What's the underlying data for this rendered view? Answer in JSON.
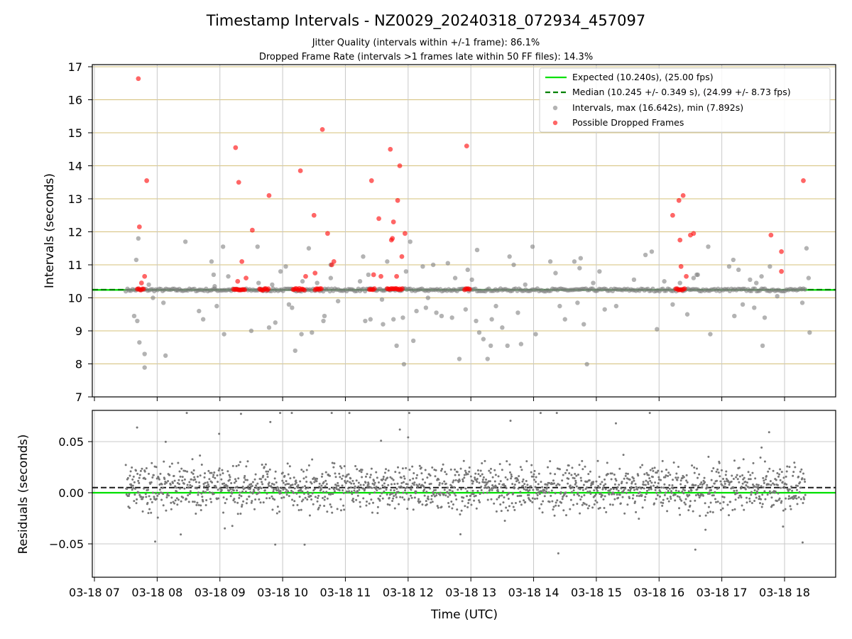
{
  "title": "Timestamp Intervals - NZ0029_20240318_072934_457097",
  "subtitle_1": "Jitter Quality (intervals within +/-1 frame): 86.1%",
  "subtitle_2": "Dropped Frame Rate (intervals >1 frames late within 50 FF files): 14.3%",
  "colors": {
    "expected": "#00e000",
    "median": "#008000",
    "intervals": "#808080",
    "dropped": "#ff0000",
    "hgrid_top": "#d4c07a",
    "grid": "#c8c8c8"
  },
  "chart_data": [
    {
      "type": "scatter",
      "panel": "top",
      "ylabel": "Intervals (seconds)",
      "ylim": [
        7,
        17
      ],
      "yticks": [
        "7",
        "8",
        "9",
        "10",
        "11",
        "12",
        "13",
        "14",
        "15",
        "16",
        "17"
      ],
      "xlim": [
        "07:00",
        "18:52"
      ],
      "grid": true,
      "legend_placement": "top-right",
      "legend": [
        "Expected (10.240s), (25.00 fps)",
        "Median (10.245 +/- 0.349 s), (24.99 +/- 8.73 fps)",
        "Intervals, max (16.642s), min (7.892s)",
        "Possible Dropped Frames"
      ],
      "expected": 10.24,
      "median": 10.245,
      "cluster_time_range": [
        "07:30",
        "18:20"
      ],
      "intervals_outliers": [
        [
          "07:42",
          11.8
        ],
        [
          "07:40",
          11.15
        ],
        [
          "07:41",
          9.3
        ],
        [
          "07:43",
          8.65
        ],
        [
          "07:48",
          8.3
        ],
        [
          "07:52",
          10.4
        ],
        [
          "07:56",
          10.0
        ],
        [
          "07:48",
          7.89
        ],
        [
          "08:06",
          9.85
        ],
        [
          "08:08",
          8.25
        ],
        [
          "08:44",
          9.35
        ],
        [
          "08:52",
          11.1
        ],
        [
          "08:54",
          10.7
        ],
        [
          "08:57",
          9.75
        ],
        [
          "09:03",
          11.55
        ],
        [
          "09:04",
          8.9
        ],
        [
          "09:37",
          10.45
        ],
        [
          "09:47",
          9.1
        ],
        [
          "09:53",
          9.25
        ],
        [
          "09:58",
          10.8
        ],
        [
          "10:03",
          10.95
        ],
        [
          "10:06",
          9.8
        ],
        [
          "10:09",
          9.7
        ],
        [
          "10:12",
          8.4
        ],
        [
          "10:19",
          10.5
        ],
        [
          "10:25",
          11.5
        ],
        [
          "10:28",
          8.95
        ],
        [
          "10:33",
          10.45
        ],
        [
          "10:40",
          9.45
        ],
        [
          "10:46",
          10.6
        ],
        [
          "10:53",
          9.9
        ],
        [
          "11:17",
          11.25
        ],
        [
          "11:19",
          9.3
        ],
        [
          "11:22",
          10.7
        ],
        [
          "11:24",
          9.35
        ],
        [
          "11:36",
          9.2
        ],
        [
          "11:40",
          11.1
        ],
        [
          "11:46",
          9.35
        ],
        [
          "11:49",
          8.55
        ],
        [
          "11:55",
          9.4
        ],
        [
          "11:58",
          10.8
        ],
        [
          "12:02",
          11.7
        ],
        [
          "12:05",
          8.7
        ],
        [
          "12:08",
          9.6
        ],
        [
          "12:14",
          10.95
        ],
        [
          "12:19",
          10.0
        ],
        [
          "12:24",
          11.0
        ],
        [
          "12:27",
          9.55
        ],
        [
          "12:32",
          9.45
        ],
        [
          "12:38",
          11.05
        ],
        [
          "12:42",
          9.4
        ],
        [
          "12:49",
          8.15
        ],
        [
          "12:55",
          9.65
        ],
        [
          "12:57",
          10.85
        ],
        [
          "13:01",
          10.55
        ],
        [
          "13:05",
          9.3
        ],
        [
          "13:08",
          8.95
        ],
        [
          "13:12",
          8.75
        ],
        [
          "13:16",
          8.15
        ],
        [
          "13:19",
          8.55
        ],
        [
          "13:24",
          9.75
        ],
        [
          "13:30",
          9.1
        ],
        [
          "13:35",
          8.55
        ],
        [
          "13:37",
          11.25
        ],
        [
          "13:41",
          11.0
        ],
        [
          "13:45",
          9.55
        ],
        [
          "13:52",
          10.4
        ],
        [
          "13:59",
          11.55
        ],
        [
          "14:02",
          8.9
        ],
        [
          "14:21",
          10.75
        ],
        [
          "14:25",
          9.75
        ],
        [
          "14:30",
          9.35
        ],
        [
          "14:39",
          11.1
        ],
        [
          "14:42",
          9.85
        ],
        [
          "14:45",
          11.2
        ],
        [
          "14:48",
          9.2
        ],
        [
          "14:51",
          7.99
        ],
        [
          "14:57",
          10.45
        ],
        [
          "15:03",
          10.8
        ],
        [
          "15:08",
          9.65
        ],
        [
          "15:36",
          10.55
        ],
        [
          "15:53",
          11.4
        ],
        [
          "15:58",
          9.05
        ],
        [
          "16:05",
          10.5
        ],
        [
          "16:13",
          9.8
        ],
        [
          "16:20",
          10.45
        ],
        [
          "16:27",
          9.5
        ],
        [
          "16:33",
          10.6
        ],
        [
          "16:37",
          10.7
        ],
        [
          "16:47",
          11.55
        ],
        [
          "16:49",
          8.9
        ],
        [
          "17:07",
          10.95
        ],
        [
          "17:12",
          9.45
        ],
        [
          "17:16",
          10.85
        ],
        [
          "17:20",
          9.8
        ],
        [
          "17:27",
          10.55
        ],
        [
          "17:31",
          9.7
        ],
        [
          "17:33",
          10.45
        ],
        [
          "17:38",
          10.65
        ],
        [
          "17:41",
          9.4
        ],
        [
          "17:46",
          10.95
        ],
        [
          "17:53",
          10.05
        ],
        [
          "18:17",
          9.85
        ],
        [
          "18:21",
          11.5
        ],
        [
          "18:23",
          10.6
        ],
        [
          "18:24",
          8.95
        ],
        [
          "18:27",
          10.25
        ],
        [
          "18:30",
          9.6
        ],
        [
          "18:34",
          10.65
        ],
        [
          "18:38",
          11.55
        ],
        [
          "18:40",
          10.4
        ],
        [
          "18:44",
          8.9
        ],
        [
          "18:47",
          9.3
        ],
        [
          "18:48",
          11.0
        ],
        [
          "18:52",
          10.5
        ],
        [
          "18:55",
          9.95
        ],
        [
          "18:58",
          7.99
        ],
        [
          "19:01",
          9.7
        ],
        [
          "19:05",
          10.6
        ],
        [
          "19:08",
          11.45
        ],
        [
          "19:10",
          9.35
        ],
        [
          "19:14",
          8.6
        ],
        [
          "19:18",
          11.1
        ],
        [
          "19:22",
          10.9
        ],
        [
          "19:27",
          9.75
        ],
        [
          "19:31",
          11.3
        ],
        [
          "19:38",
          10.7
        ],
        [
          "19:43",
          11.15
        ],
        [
          "19:47",
          8.55
        ],
        [
          "19:54",
          9.45
        ],
        [
          "20:01",
          11.7
        ],
        [
          "20:05",
          10.35
        ],
        [
          "20:10",
          9.0
        ]
      ],
      "dropped_frames": [
        [
          "07:42",
          16.64
        ],
        [
          "07:43",
          12.15
        ],
        [
          "07:45",
          10.45
        ],
        [
          "07:48",
          10.65
        ],
        [
          "07:50",
          13.55
        ],
        [
          "09:15",
          14.55
        ],
        [
          "09:17",
          10.5
        ],
        [
          "09:18",
          13.5
        ],
        [
          "09:21",
          11.1
        ],
        [
          "09:25",
          10.6
        ],
        [
          "09:31",
          12.05
        ],
        [
          "09:47",
          13.1
        ],
        [
          "10:17",
          13.85
        ],
        [
          "10:22",
          10.65
        ],
        [
          "10:30",
          12.5
        ],
        [
          "10:31",
          10.75
        ],
        [
          "10:38",
          15.1
        ],
        [
          "10:43",
          11.95
        ],
        [
          "10:47",
          11.0
        ],
        [
          "10:49",
          11.1
        ],
        [
          "11:25",
          13.55
        ],
        [
          "11:27",
          10.7
        ],
        [
          "11:32",
          12.4
        ],
        [
          "11:34",
          10.65
        ],
        [
          "11:43",
          14.5
        ],
        [
          "11:44",
          11.75
        ],
        [
          "11:45",
          11.8
        ],
        [
          "11:46",
          12.3
        ],
        [
          "11:49",
          10.65
        ],
        [
          "11:50",
          12.95
        ],
        [
          "11:52",
          14.0
        ],
        [
          "11:54",
          11.25
        ],
        [
          "11:57",
          11.95
        ],
        [
          "12:56",
          14.6
        ],
        [
          "16:13",
          12.5
        ],
        [
          "16:19",
          12.95
        ],
        [
          "16:20",
          11.75
        ],
        [
          "16:21",
          10.95
        ],
        [
          "16:23",
          13.1
        ],
        [
          "16:26",
          10.65
        ],
        [
          "16:30",
          11.9
        ],
        [
          "16:33",
          11.95
        ],
        [
          "17:47",
          11.9
        ],
        [
          "17:57",
          11.4
        ],
        [
          "17:57",
          10.8
        ],
        [
          "18:18",
          13.55
        ]
      ],
      "dropped_clusters_near_expected": [
        "07:41-07:48",
        "09:13-09:24",
        "09:38-09:47",
        "10:10-10:21",
        "10:31-10:38",
        "11:23-11:29",
        "11:40-11:55",
        "12:54-13:00",
        "16:16-16:25"
      ]
    },
    {
      "type": "scatter",
      "panel": "bottom",
      "xlabel": "Time (UTC)",
      "ylabel": "Residuals (seconds)",
      "ylim": [
        -0.08,
        0.08
      ],
      "yticks": [
        "−0.05",
        "0.00",
        "0.05"
      ],
      "xticks": [
        "03-18 07",
        "03-18 08",
        "03-18 09",
        "03-18 10",
        "03-18 11",
        "03-18 12",
        "03-18 13",
        "03-18 14",
        "03-18 15",
        "03-18 16",
        "03-18 17",
        "03-18 18"
      ],
      "expected_residual": 0.0,
      "median_residual": 0.005,
      "residual_spread": "approximately -0.05 to 0.07 s, dense band between -0.03 and 0.04 s",
      "grid": true
    }
  ]
}
